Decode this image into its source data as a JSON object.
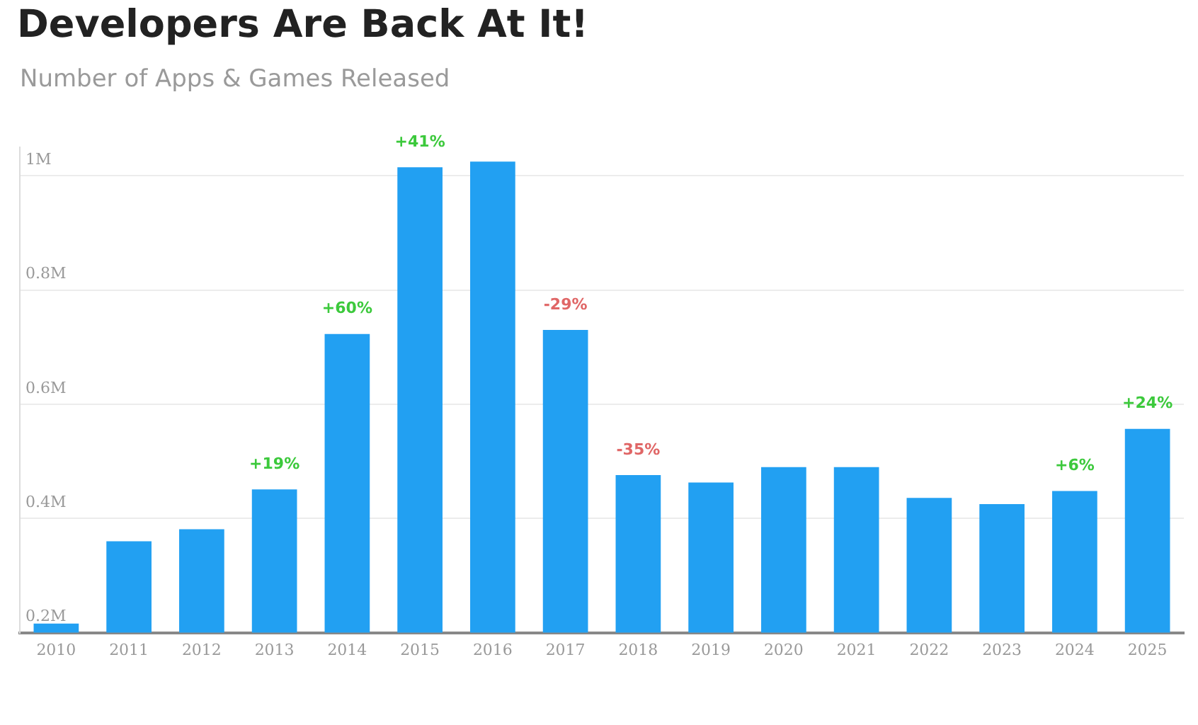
{
  "chart_data": {
    "type": "bar",
    "title": "Developers Are Back At It!",
    "subtitle": "Number of Apps & Games Released",
    "categories": [
      "2010",
      "2011",
      "2012",
      "2013",
      "2014",
      "2015",
      "2016",
      "2017",
      "2018",
      "2019",
      "2020",
      "2021",
      "2022",
      "2023",
      "2024",
      "2025"
    ],
    "values": [
      0.216,
      0.36,
      0.381,
      0.451,
      0.723,
      1.015,
      1.025,
      0.73,
      0.476,
      0.463,
      0.49,
      0.49,
      0.436,
      0.425,
      0.448,
      0.557
    ],
    "color": "#22a0f2",
    "ylim": [
      0.2,
      1.05
    ],
    "yticks": [
      {
        "value": 0.2,
        "label": "0.2M"
      },
      {
        "value": 0.4,
        "label": "0.4M"
      },
      {
        "value": 0.6,
        "label": "0.6M"
      },
      {
        "value": 0.8,
        "label": "0.8M"
      },
      {
        "value": 1,
        "label": "1M"
      }
    ],
    "grid": "y",
    "legend": false,
    "annotations": [
      {
        "text": "+19%",
        "x": "2013",
        "y": 0.451
      },
      {
        "text": "+60%",
        "x": "2014",
        "y": 0.723
      },
      {
        "text": "+41%",
        "x": "2015",
        "y": 1.015
      },
      {
        "text": "-29%",
        "x": "2017",
        "y": 0.73
      },
      {
        "text": "-35%",
        "x": "2018",
        "y": 0.476
      },
      {
        "text": "+6%",
        "x": "2024",
        "y": 0.448
      },
      {
        "text": "+24%",
        "x": "2025",
        "y": 0.557
      }
    ]
  }
}
